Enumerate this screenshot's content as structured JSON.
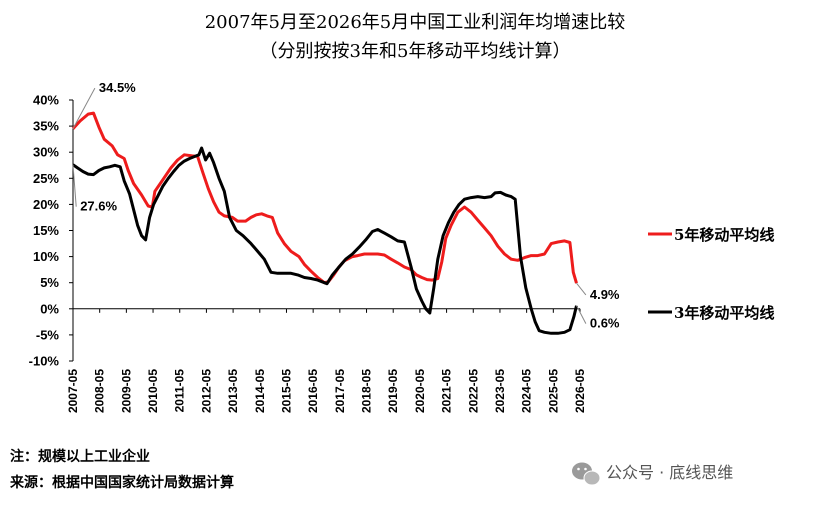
{
  "chart_data": {
    "type": "line",
    "title": "2007年5月至2026年5月中国工业利润年均增速比较",
    "subtitle": "（分别按按3年和5年移动平均线计算）",
    "categories": [
      "2007-05",
      "2008-05",
      "2009-05",
      "2010-05",
      "2011-05",
      "2012-05",
      "2013-05",
      "2014-05",
      "2015-05",
      "2016-05",
      "2017-05",
      "2018-05",
      "2019-05",
      "2020-05",
      "2021-05",
      "2022-05",
      "2023-05",
      "2024-05",
      "2025-05",
      "2026-05"
    ],
    "ylim": [
      -10,
      40
    ],
    "yticks": [
      "-10%",
      "-5%",
      "0%",
      "5%",
      "10%",
      "15%",
      "20%",
      "25%",
      "30%",
      "35%",
      "40%"
    ],
    "xlabel": "",
    "ylabel": "",
    "series": [
      {
        "name": "5年移动平均线",
        "color": "#ee1c1c",
        "points": [
          [
            2007.33,
            34.5
          ],
          [
            2007.6,
            36
          ],
          [
            2007.9,
            37.3
          ],
          [
            2008.1,
            37.5
          ],
          [
            2008.3,
            34.8
          ],
          [
            2008.5,
            32.5
          ],
          [
            2008.8,
            31.2
          ],
          [
            2009.0,
            29.5
          ],
          [
            2009.25,
            28.8
          ],
          [
            2009.4,
            26.5
          ],
          [
            2009.6,
            24
          ],
          [
            2009.9,
            21.8
          ],
          [
            2010.15,
            19.7
          ],
          [
            2010.3,
            19.5
          ],
          [
            2010.4,
            22.5
          ],
          [
            2010.6,
            24
          ],
          [
            2010.8,
            25.5
          ],
          [
            2011.0,
            27
          ],
          [
            2011.25,
            28.5
          ],
          [
            2011.5,
            29.5
          ],
          [
            2011.8,
            29.3
          ],
          [
            2012.0,
            29.2
          ],
          [
            2012.2,
            26
          ],
          [
            2012.4,
            23
          ],
          [
            2012.6,
            20.5
          ],
          [
            2012.8,
            18.5
          ],
          [
            2013.0,
            17.8
          ],
          [
            2013.3,
            17.5
          ],
          [
            2013.5,
            16.8
          ],
          [
            2013.8,
            16.8
          ],
          [
            2014.0,
            17.5
          ],
          [
            2014.2,
            18
          ],
          [
            2014.4,
            18.2
          ],
          [
            2014.6,
            17.8
          ],
          [
            2014.8,
            17.5
          ],
          [
            2015.0,
            14.5
          ],
          [
            2015.25,
            12.5
          ],
          [
            2015.5,
            11
          ],
          [
            2015.8,
            10
          ],
          [
            2016.0,
            8.5
          ],
          [
            2016.25,
            7.2
          ],
          [
            2016.5,
            6
          ],
          [
            2016.75,
            5
          ],
          [
            2016.9,
            5.2
          ],
          [
            2017.1,
            6.5
          ],
          [
            2017.3,
            8
          ],
          [
            2017.5,
            9.2
          ],
          [
            2017.8,
            10
          ],
          [
            2018.0,
            10.2
          ],
          [
            2018.25,
            10.5
          ],
          [
            2018.5,
            10.5
          ],
          [
            2018.75,
            10.5
          ],
          [
            2019.0,
            10.3
          ],
          [
            2019.25,
            9.5
          ],
          [
            2019.5,
            8.8
          ],
          [
            2019.75,
            8
          ],
          [
            2020.0,
            7.5
          ],
          [
            2020.2,
            6.5
          ],
          [
            2020.4,
            6
          ],
          [
            2020.6,
            5.6
          ],
          [
            2020.8,
            5.5
          ],
          [
            2021.0,
            5.8
          ],
          [
            2021.15,
            9
          ],
          [
            2021.3,
            13.5
          ],
          [
            2021.5,
            16
          ],
          [
            2021.75,
            18.5
          ],
          [
            2022.0,
            19.5
          ],
          [
            2022.25,
            18.5
          ],
          [
            2022.5,
            17
          ],
          [
            2022.75,
            15.5
          ],
          [
            2023.0,
            14
          ],
          [
            2023.25,
            12
          ],
          [
            2023.5,
            10.5
          ],
          [
            2023.75,
            9.5
          ],
          [
            2024.0,
            9.3
          ],
          [
            2024.25,
            9.8
          ],
          [
            2024.5,
            10.2
          ],
          [
            2024.75,
            10.2
          ],
          [
            2025.0,
            10.5
          ],
          [
            2025.25,
            12.5
          ],
          [
            2025.5,
            12.8
          ],
          [
            2025.75,
            13
          ],
          [
            2025.95,
            12.7
          ],
          [
            2026.08,
            7
          ],
          [
            2026.2,
            4.9
          ]
        ]
      },
      {
        "name": "3年移动平均线",
        "color": "#000000",
        "points": [
          [
            2007.33,
            27.6
          ],
          [
            2007.5,
            27
          ],
          [
            2007.7,
            26.3
          ],
          [
            2007.9,
            25.8
          ],
          [
            2008.1,
            25.7
          ],
          [
            2008.3,
            26.5
          ],
          [
            2008.5,
            27
          ],
          [
            2008.7,
            27.2
          ],
          [
            2008.9,
            27.5
          ],
          [
            2009.1,
            27.2
          ],
          [
            2009.25,
            24.5
          ],
          [
            2009.45,
            22
          ],
          [
            2009.6,
            19
          ],
          [
            2009.75,
            16
          ],
          [
            2009.9,
            14
          ],
          [
            2010.05,
            13.2
          ],
          [
            2010.2,
            17.5
          ],
          [
            2010.35,
            20
          ],
          [
            2010.5,
            21.5
          ],
          [
            2010.7,
            23.5
          ],
          [
            2010.9,
            25
          ],
          [
            2011.1,
            26.3
          ],
          [
            2011.3,
            27.5
          ],
          [
            2011.5,
            28.3
          ],
          [
            2011.7,
            28.8
          ],
          [
            2011.9,
            29.2
          ],
          [
            2012.05,
            29.5
          ],
          [
            2012.15,
            30.8
          ],
          [
            2012.3,
            28.5
          ],
          [
            2012.45,
            29.8
          ],
          [
            2012.6,
            28
          ],
          [
            2012.8,
            25
          ],
          [
            2013.0,
            22.5
          ],
          [
            2013.2,
            17.5
          ],
          [
            2013.45,
            15
          ],
          [
            2013.7,
            14
          ],
          [
            2014.0,
            12.5
          ],
          [
            2014.25,
            11
          ],
          [
            2014.5,
            9.5
          ],
          [
            2014.75,
            7
          ],
          [
            2015.0,
            6.8
          ],
          [
            2015.25,
            6.8
          ],
          [
            2015.5,
            6.8
          ],
          [
            2015.75,
            6.5
          ],
          [
            2016.0,
            6
          ],
          [
            2016.25,
            5.8
          ],
          [
            2016.5,
            5.5
          ],
          [
            2016.75,
            5
          ],
          [
            2016.85,
            4.8
          ],
          [
            2017.05,
            6.5
          ],
          [
            2017.3,
            8
          ],
          [
            2017.55,
            9.5
          ],
          [
            2017.8,
            10.5
          ],
          [
            2018.05,
            11.8
          ],
          [
            2018.3,
            13.2
          ],
          [
            2018.55,
            14.8
          ],
          [
            2018.75,
            15.2
          ],
          [
            2019.0,
            14.5
          ],
          [
            2019.25,
            13.8
          ],
          [
            2019.5,
            13
          ],
          [
            2019.75,
            12.8
          ],
          [
            2020.0,
            8
          ],
          [
            2020.2,
            3.8
          ],
          [
            2020.4,
            1.5
          ],
          [
            2020.55,
            0
          ],
          [
            2020.7,
            -0.8
          ],
          [
            2020.85,
            4
          ],
          [
            2021.0,
            9.5
          ],
          [
            2021.2,
            14
          ],
          [
            2021.4,
            16.5
          ],
          [
            2021.6,
            18.5
          ],
          [
            2021.8,
            20
          ],
          [
            2022.0,
            21
          ],
          [
            2022.25,
            21.3
          ],
          [
            2022.5,
            21.5
          ],
          [
            2022.75,
            21.3
          ],
          [
            2023.0,
            21.5
          ],
          [
            2023.15,
            22.2
          ],
          [
            2023.35,
            22.3
          ],
          [
            2023.55,
            21.8
          ],
          [
            2023.75,
            21.5
          ],
          [
            2023.9,
            21
          ],
          [
            2024.1,
            10
          ],
          [
            2024.3,
            4
          ],
          [
            2024.5,
            0
          ],
          [
            2024.65,
            -2.5
          ],
          [
            2024.8,
            -4.2
          ],
          [
            2025.0,
            -4.5
          ],
          [
            2025.25,
            -4.7
          ],
          [
            2025.5,
            -4.7
          ],
          [
            2025.75,
            -4.5
          ],
          [
            2025.95,
            -4
          ],
          [
            2026.1,
            -1.5
          ],
          [
            2026.2,
            0.6
          ]
        ]
      }
    ],
    "annotations": [
      {
        "text": "34.5%",
        "series": 0,
        "at": [
          2007.33,
          34.5
        ],
        "label_pos": [
          2008.3,
          41.5
        ]
      },
      {
        "text": "27.6%",
        "series": 1,
        "at": [
          2007.33,
          27.6
        ],
        "label_pos": [
          2007.6,
          18.8
        ]
      },
      {
        "text": "4.9%",
        "series": 0,
        "at": [
          2026.2,
          4.9
        ],
        "label_pos": [
          2026.7,
          1.9
        ]
      },
      {
        "text": "0.6%",
        "series": 1,
        "at": [
          2026.2,
          0.6
        ],
        "label_pos": [
          2026.7,
          -3.6
        ]
      }
    ],
    "legend_position": "right",
    "grid": false
  },
  "notes": {
    "line1": "注：规模以上工业企业",
    "line2": "来源：根据中国国家统计局数据计算"
  },
  "watermark": {
    "icon": "wechat-icon",
    "text": "公众号 · 底线思维"
  }
}
